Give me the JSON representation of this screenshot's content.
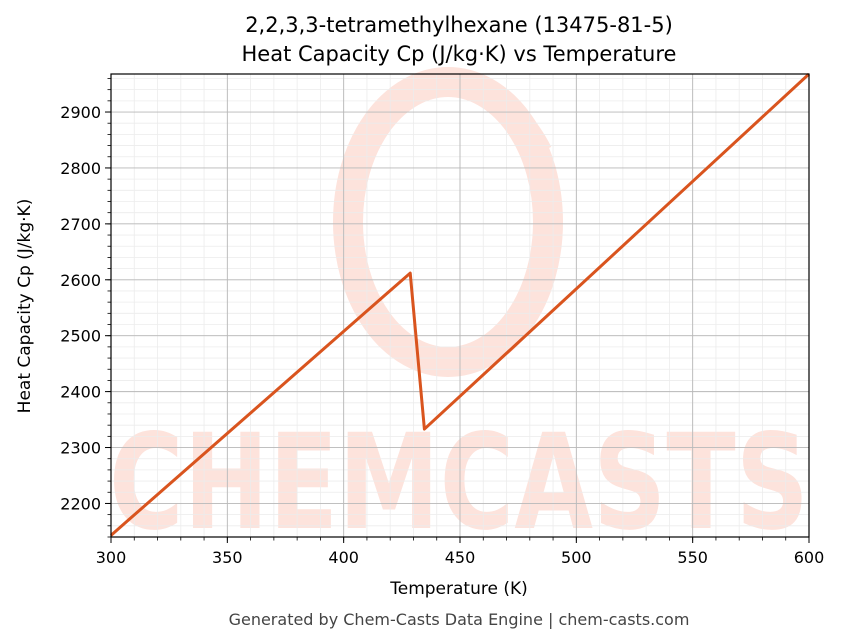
{
  "chart_data": {
    "type": "line",
    "title": "2,2,3,3-tetramethylhexane (13475-81-5)",
    "subtitle": "Heat Capacity Cp (J/kg·K) vs Temperature",
    "xlabel": "Temperature (K)",
    "ylabel": "Heat Capacity Cp (J/kg·K)",
    "xlim": [
      300,
      600
    ],
    "ylim": [
      2140,
      2968
    ],
    "xticks": [
      300,
      350,
      400,
      450,
      500,
      550,
      600
    ],
    "yticks": [
      2200,
      2300,
      2400,
      2500,
      2600,
      2700,
      2800,
      2900
    ],
    "grid": true,
    "series": [
      {
        "color": "#d9541e",
        "x": [
          300,
          428.6,
          434.7,
          600
        ],
        "y": [
          2143,
          2612,
          2333,
          2968
        ]
      }
    ]
  },
  "watermark": {
    "text": "CHEMCASTS",
    "color": "#fde3dc"
  },
  "footer": "Generated by Chem-Casts Data Engine | chem-casts.com"
}
